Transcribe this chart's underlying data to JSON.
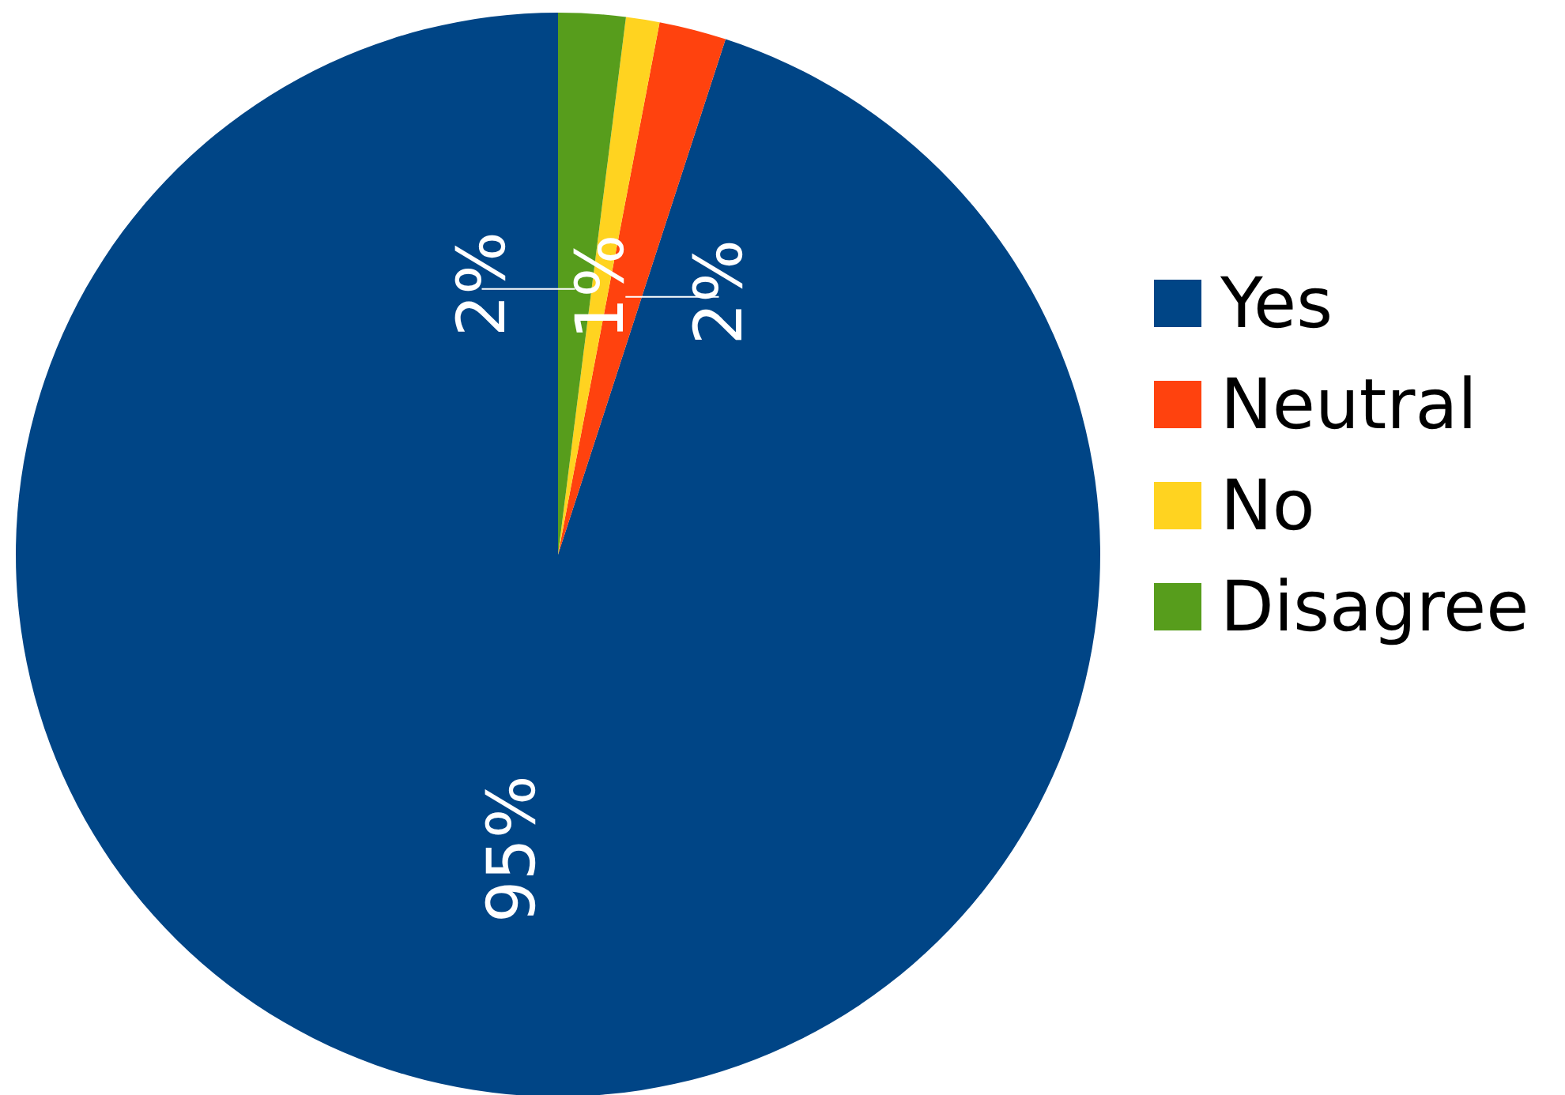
{
  "chart_data": {
    "type": "pie",
    "categories": [
      "Yes",
      "Neutral",
      "No",
      "Disagree"
    ],
    "values": [
      95,
      2,
      1,
      2
    ],
    "colors": [
      "#004586",
      "#ff420e",
      "#ffd320",
      "#579d1c"
    ],
    "value_labels": [
      "95%",
      "2%",
      "1%",
      "2%"
    ],
    "legend": "right"
  }
}
